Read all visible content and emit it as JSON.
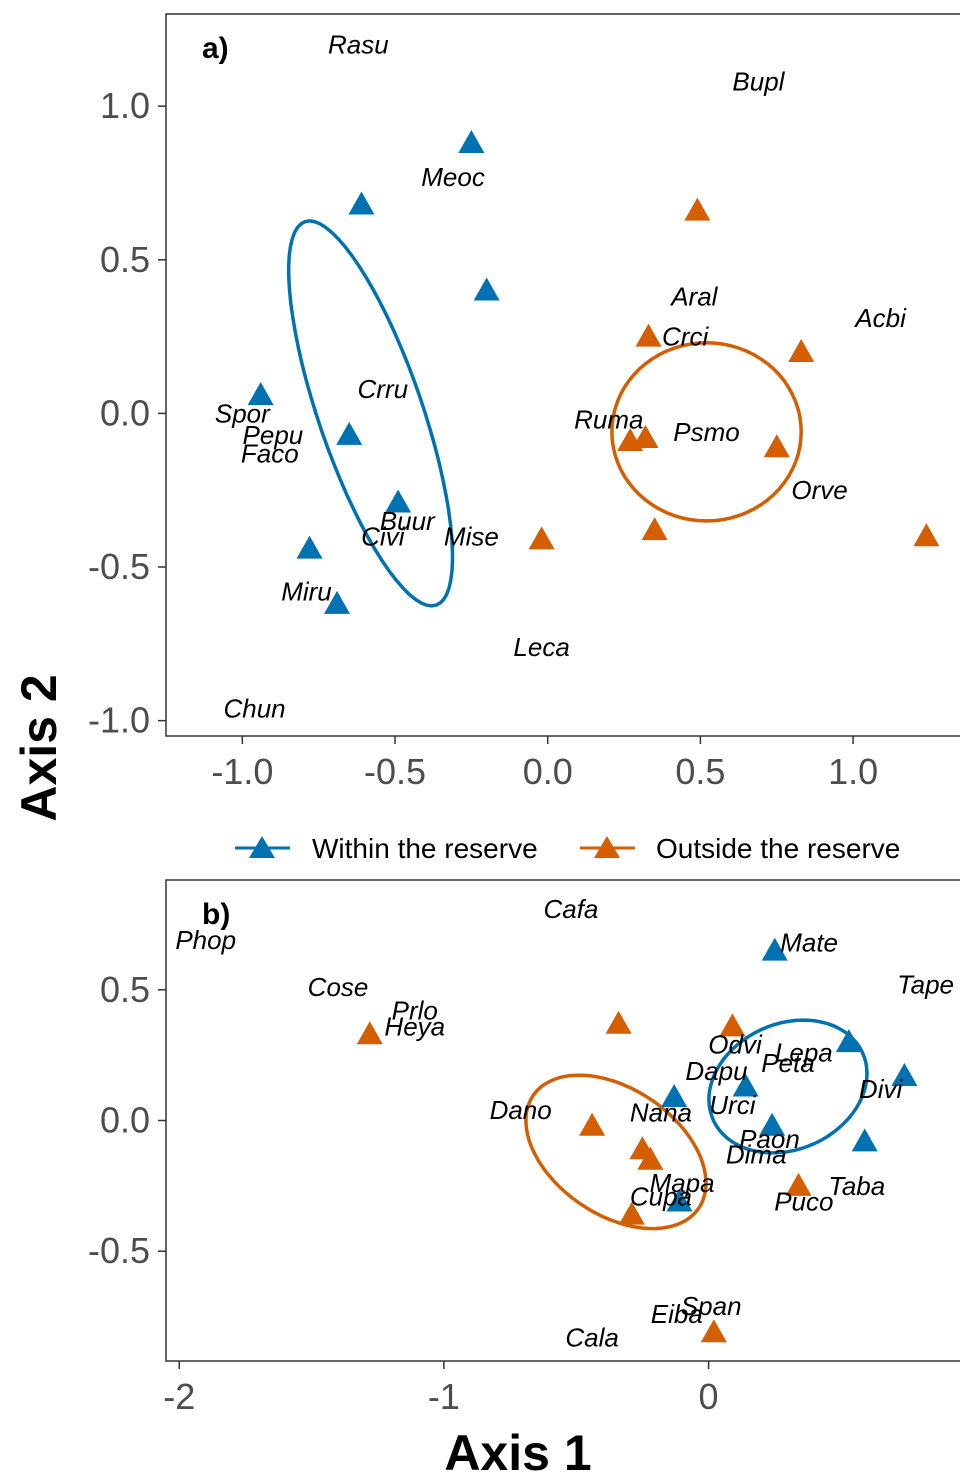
{
  "colors": {
    "within": "#0072B2",
    "outside": "#D55E00",
    "axis": "#333333",
    "tick_text": "#4d4d4d"
  },
  "axis_titles": {
    "x": "Axis 1",
    "y": "Axis 2"
  },
  "legend": {
    "placement": "between-panels",
    "items": [
      {
        "label": "Within the reserve",
        "group": "within",
        "color": "#0072B2"
      },
      {
        "label": "Outside the reserve",
        "group": "outside",
        "color": "#D55E00"
      }
    ]
  },
  "chart_data": [
    {
      "type": "scatter",
      "panel_label": "a)",
      "xlim": [
        -1.25,
        1.35
      ],
      "ylim": [
        -1.05,
        1.3
      ],
      "x_ticks": [
        -1.0,
        -0.5,
        0.0,
        0.5,
        1.0
      ],
      "x_tick_labels": [
        "-1.0",
        "-0.5",
        "0.0",
        "0.5",
        "1.0"
      ],
      "y_ticks": [
        -1.0,
        -0.5,
        0.0,
        0.5,
        1.0
      ],
      "y_tick_labels": [
        "-1.0",
        "-0.5",
        "0.0",
        "0.5",
        "1.0"
      ],
      "grid": false,
      "series": [
        {
          "name": "Within the reserve",
          "group": "within",
          "points": [
            {
              "x": -0.25,
              "y": 0.88
            },
            {
              "x": -0.61,
              "y": 0.68
            },
            {
              "x": -0.2,
              "y": 0.4
            },
            {
              "x": -0.94,
              "y": 0.06
            },
            {
              "x": -0.65,
              "y": -0.07
            },
            {
              "x": -0.49,
              "y": -0.29
            },
            {
              "x": -0.78,
              "y": -0.44
            },
            {
              "x": -0.69,
              "y": -0.62
            }
          ]
        },
        {
          "name": "Outside the reserve",
          "group": "outside",
          "points": [
            {
              "x": 0.49,
              "y": 0.66
            },
            {
              "x": 0.33,
              "y": 0.25
            },
            {
              "x": 0.83,
              "y": 0.2
            },
            {
              "x": 0.27,
              "y": -0.09
            },
            {
              "x": 0.32,
              "y": -0.08
            },
            {
              "x": 0.75,
              "y": -0.11
            },
            {
              "x": 0.35,
              "y": -0.38
            },
            {
              "x": -0.02,
              "y": -0.41
            },
            {
              "x": 1.24,
              "y": -0.4
            }
          ]
        }
      ],
      "ellipses": [
        {
          "group": "within",
          "cx": -0.58,
          "cy": 0.0,
          "rx": 0.66,
          "ry": 0.17,
          "angle_deg": -71
        },
        {
          "group": "outside",
          "cx": 0.52,
          "cy": -0.06,
          "rx": 0.31,
          "ry": 0.29,
          "angle_deg": 0
        }
      ],
      "species": [
        {
          "label": "Rasu",
          "x": -0.62,
          "y": 1.2
        },
        {
          "label": "Bupl",
          "x": 0.69,
          "y": 1.08
        },
        {
          "label": "Meoc",
          "x": -0.31,
          "y": 0.77
        },
        {
          "label": "Aral",
          "x": 0.48,
          "y": 0.38
        },
        {
          "label": "Acbi",
          "x": 1.09,
          "y": 0.31
        },
        {
          "label": "Crci",
          "x": 0.45,
          "y": 0.25
        },
        {
          "label": "Crru",
          "x": -0.54,
          "y": 0.08
        },
        {
          "label": "Spor",
          "x": -1.0,
          "y": 0.0
        },
        {
          "label": "Ruma",
          "x": 0.2,
          "y": -0.02
        },
        {
          "label": "Psmo",
          "x": 0.52,
          "y": -0.06
        },
        {
          "label": "Pepu",
          "x": -0.9,
          "y": -0.07
        },
        {
          "label": "Faco",
          "x": -0.91,
          "y": -0.13
        },
        {
          "label": "Orve",
          "x": 0.89,
          "y": -0.25
        },
        {
          "label": "Buur",
          "x": -0.46,
          "y": -0.35
        },
        {
          "label": "Civi",
          "x": -0.54,
          "y": -0.4
        },
        {
          "label": "Mise",
          "x": -0.25,
          "y": -0.4
        },
        {
          "label": "Miru",
          "x": -0.79,
          "y": -0.58
        },
        {
          "label": "Leca",
          "x": -0.02,
          "y": -0.76
        },
        {
          "label": "Chun",
          "x": -0.96,
          "y": -0.96
        }
      ]
    },
    {
      "type": "scatter",
      "panel_label": "b)",
      "xlim": [
        -2.05,
        0.95
      ],
      "ylim": [
        -0.92,
        0.92
      ],
      "x_ticks": [
        -2,
        -1,
        0
      ],
      "x_tick_labels": [
        "-2",
        "-1",
        "0"
      ],
      "y_ticks": [
        -0.5,
        0.0,
        0.5
      ],
      "y_tick_labels": [
        "-0.5",
        "0.0",
        "0.5"
      ],
      "grid": false,
      "series": [
        {
          "name": "Within the reserve",
          "group": "within",
          "points": [
            {
              "x": 0.25,
              "y": 0.65
            },
            {
              "x": 0.53,
              "y": 0.3
            },
            {
              "x": 0.74,
              "y": 0.17
            },
            {
              "x": 0.14,
              "y": 0.13
            },
            {
              "x": -0.13,
              "y": 0.09
            },
            {
              "x": 0.24,
              "y": -0.02
            },
            {
              "x": 0.59,
              "y": -0.08
            },
            {
              "x": -0.11,
              "y": -0.31
            }
          ]
        },
        {
          "name": "Outside the reserve",
          "group": "outside",
          "points": [
            {
              "x": -1.28,
              "y": 0.33
            },
            {
              "x": -0.34,
              "y": 0.37
            },
            {
              "x": 0.09,
              "y": 0.36
            },
            {
              "x": -0.44,
              "y": -0.02
            },
            {
              "x": -0.25,
              "y": -0.11
            },
            {
              "x": -0.22,
              "y": -0.15
            },
            {
              "x": -0.29,
              "y": -0.36
            },
            {
              "x": 0.34,
              "y": -0.25
            },
            {
              "x": 0.02,
              "y": -0.81
            }
          ]
        }
      ],
      "ellipses": [
        {
          "group": "within",
          "cx": 0.3,
          "cy": 0.13,
          "rx": 0.31,
          "ry": 0.24,
          "angle_deg": 25
        },
        {
          "group": "outside",
          "cx": -0.35,
          "cy": -0.12,
          "rx": 0.38,
          "ry": 0.24,
          "angle_deg": -35
        }
      ],
      "species": [
        {
          "label": "Cafa",
          "x": -0.52,
          "y": 0.81
        },
        {
          "label": "Phop",
          "x": -1.9,
          "y": 0.69
        },
        {
          "label": "Mate",
          "x": 0.38,
          "y": 0.68
        },
        {
          "label": "Cose",
          "x": -1.4,
          "y": 0.51
        },
        {
          "label": "Tape",
          "x": 0.82,
          "y": 0.52
        },
        {
          "label": "Prlo",
          "x": -1.11,
          "y": 0.42
        },
        {
          "label": "Heya",
          "x": -1.11,
          "y": 0.36
        },
        {
          "label": "Odvi",
          "x": 0.1,
          "y": 0.29
        },
        {
          "label": "Lepa",
          "x": 0.36,
          "y": 0.26
        },
        {
          "label": "Peta",
          "x": 0.3,
          "y": 0.22
        },
        {
          "label": "Dapu",
          "x": 0.03,
          "y": 0.19
        },
        {
          "label": "Divi",
          "x": 0.65,
          "y": 0.12
        },
        {
          "label": "Urci",
          "x": 0.09,
          "y": 0.06
        },
        {
          "label": "Dano",
          "x": -0.71,
          "y": 0.04
        },
        {
          "label": "Nana",
          "x": -0.18,
          "y": 0.03
        },
        {
          "label": "Paon",
          "x": 0.23,
          "y": -0.07
        },
        {
          "label": "Dima",
          "x": 0.18,
          "y": -0.13
        },
        {
          "label": "Mapa",
          "x": -0.1,
          "y": -0.24
        },
        {
          "label": "Taba",
          "x": 0.56,
          "y": -0.25
        },
        {
          "label": "Cupa",
          "x": -0.18,
          "y": -0.29
        },
        {
          "label": "Puco",
          "x": 0.36,
          "y": -0.31
        },
        {
          "label": "Span",
          "x": 0.01,
          "y": -0.71
        },
        {
          "label": "Eiba",
          "x": -0.12,
          "y": -0.74
        },
        {
          "label": "Cala",
          "x": -0.44,
          "y": -0.83
        }
      ]
    }
  ]
}
